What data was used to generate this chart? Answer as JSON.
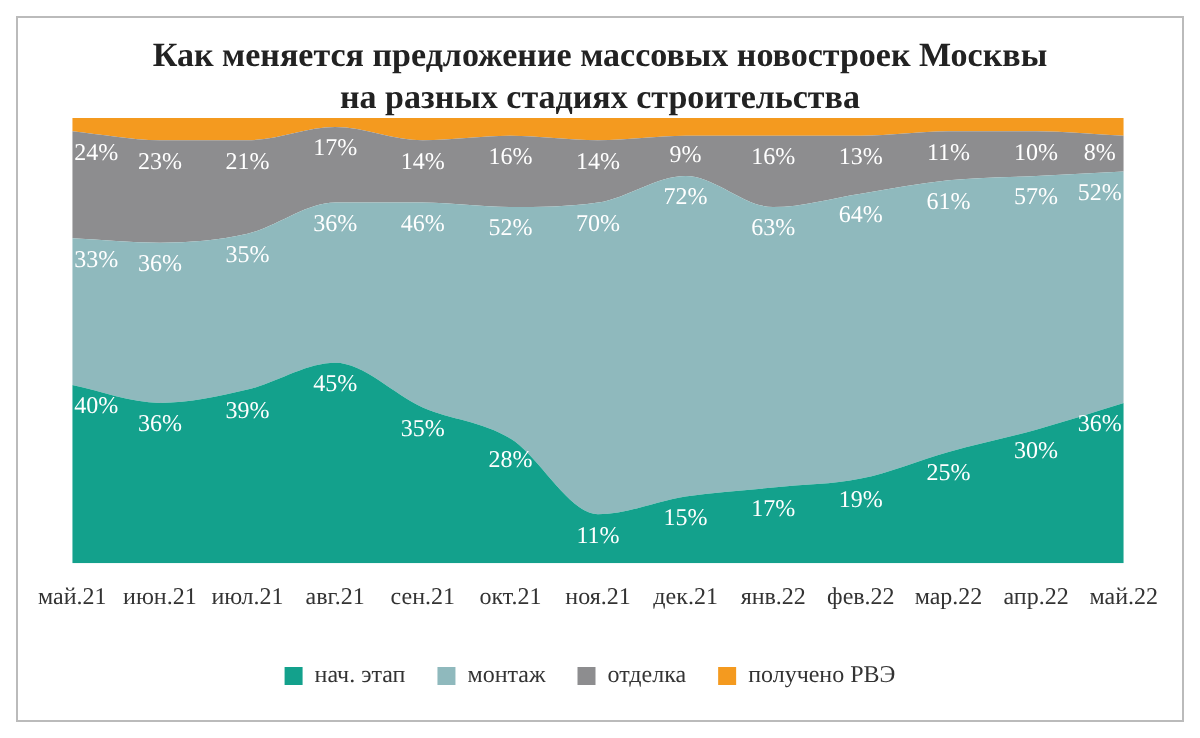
{
  "chart_data": {
    "type": "area",
    "title": "Как меняется предложение массовых новостроек Москвы на разных стадиях строительства",
    "categories": [
      "май.21",
      "июн.21",
      "июл.21",
      "авг.21",
      "сен.21",
      "окт.21",
      "ноя.21",
      "дек.21",
      "янв.22",
      "фев.22",
      "мар.22",
      "апр.22",
      "май.22"
    ],
    "stacked": true,
    "legend": "bottom",
    "grid": false,
    "series": [
      {
        "name": "нач. этап",
        "color": "#13a18c",
        "values": [
          40,
          36,
          39,
          45,
          35,
          28,
          11,
          15,
          17,
          19,
          25,
          30,
          36
        ],
        "value_labels": [
          "40%",
          "36%",
          "39%",
          "45%",
          "35%",
          "28%",
          "11%",
          "15%",
          "17%",
          "19%",
          "25%",
          "30%",
          "36%"
        ]
      },
      {
        "name": "монтаж",
        "color": "#8fb9bd",
        "values": [
          33,
          36,
          35,
          36,
          46,
          52,
          70,
          72,
          63,
          64,
          61,
          57,
          52
        ],
        "value_labels": [
          "33%",
          "36%",
          "35%",
          "36%",
          "46%",
          "52%",
          "70%",
          "72%",
          "63%",
          "64%",
          "61%",
          "57%",
          "52%"
        ]
      },
      {
        "name": "отделка",
        "color": "#8d8d8f",
        "values": [
          24,
          23,
          21,
          17,
          14,
          16,
          14,
          9,
          16,
          13,
          11,
          10,
          8
        ],
        "value_labels": [
          "24%",
          "23%",
          "21%",
          "17%",
          "14%",
          "16%",
          "14%",
          "9%",
          "16%",
          "13%",
          "11%",
          "10%",
          "8%"
        ]
      },
      {
        "name": "получено РВЭ",
        "color": "#f49a1f",
        "values": [
          3,
          5,
          5,
          2,
          5,
          4,
          5,
          4,
          4,
          4,
          3,
          3,
          4
        ]
      }
    ]
  }
}
